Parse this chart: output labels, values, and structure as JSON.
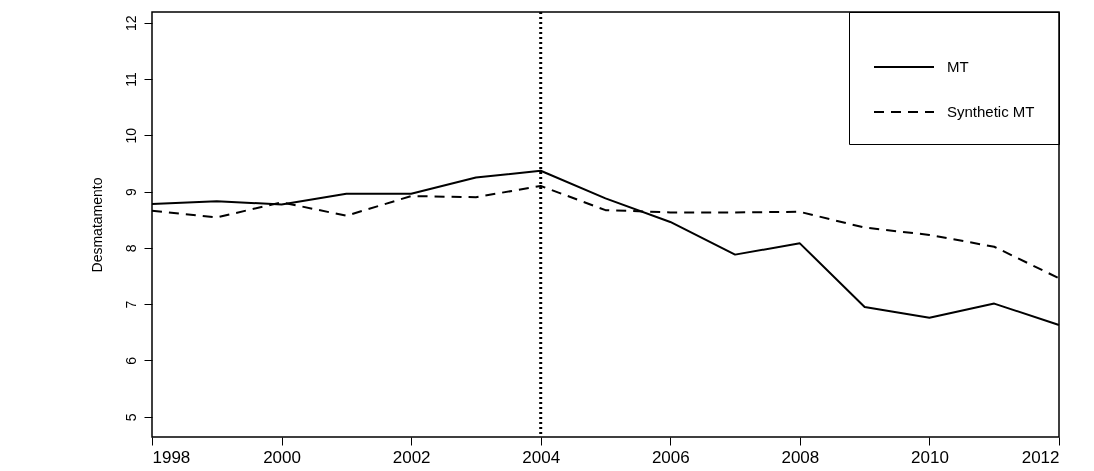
{
  "chart_data": {
    "type": "line",
    "ylabel": "Desmatamento",
    "x": [
      1998,
      1999,
      2000,
      2001,
      2002,
      2003,
      2004,
      2005,
      2006,
      2007,
      2008,
      2009,
      2010,
      2011,
      2012
    ],
    "series": [
      {
        "name": "MT",
        "color": "#000000",
        "line_style": "solid",
        "values": [
          8.78,
          8.83,
          8.77,
          8.96,
          8.96,
          9.25,
          9.37,
          8.88,
          8.46,
          7.88,
          8.08,
          6.95,
          6.76,
          7.01,
          6.63
        ]
      },
      {
        "name": "Synthetic MT",
        "color": "#000000",
        "line_style": "dashed",
        "values": [
          8.66,
          8.54,
          8.81,
          8.57,
          8.92,
          8.9,
          9.1,
          8.67,
          8.63,
          8.63,
          8.64,
          8.36,
          8.23,
          8.02,
          7.46
        ]
      }
    ],
    "xlim": [
      1998,
      2012
    ],
    "xticks": [
      1998,
      2000,
      2002,
      2004,
      2006,
      2008,
      2010,
      2012
    ],
    "ylim": [
      4.64,
      12.19
    ],
    "yticks": [
      5,
      6,
      7,
      8,
      9,
      10,
      11,
      12
    ],
    "ref_lines": [
      {
        "axis": "x",
        "value": 2004,
        "line_style": "dotted",
        "color": "#000000"
      }
    ],
    "grid": false,
    "legend": "top right",
    "marker": "none"
  }
}
